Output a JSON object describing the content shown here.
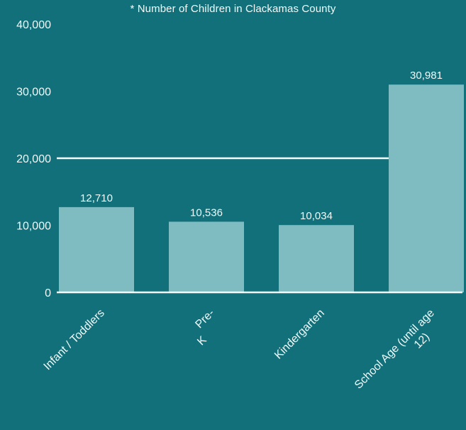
{
  "chart_data": {
    "type": "bar",
    "title": "* Number of Children in Clackamas County",
    "categories": [
      "Infant / Toddlers",
      "Pre-K",
      "Kindergarten",
      "School Age (until age 12)"
    ],
    "category_label_lines": [
      [
        "Infant / Toddlers"
      ],
      [
        "Pre-",
        "K"
      ],
      [
        "Kindergarten"
      ],
      [
        "School Age (until age",
        "12)"
      ]
    ],
    "values": [
      12710,
      10536,
      10034,
      30981
    ],
    "value_labels": [
      "12,710",
      "10,536",
      "10,034",
      "30,981"
    ],
    "ylim": [
      0,
      40000
    ],
    "yticks": [
      0,
      10000,
      20000,
      30000,
      40000
    ],
    "ytick_labels": [
      "0",
      "10,000",
      "20,000",
      "30,000",
      "40,000"
    ],
    "gridlines": [
      20000
    ],
    "xlabel": "",
    "ylabel": "",
    "legend": "none",
    "colors": {
      "background": "#12707a",
      "bar": "#7fbcc2",
      "axis": "#f4fbfb",
      "text": "#f0fafa"
    }
  }
}
